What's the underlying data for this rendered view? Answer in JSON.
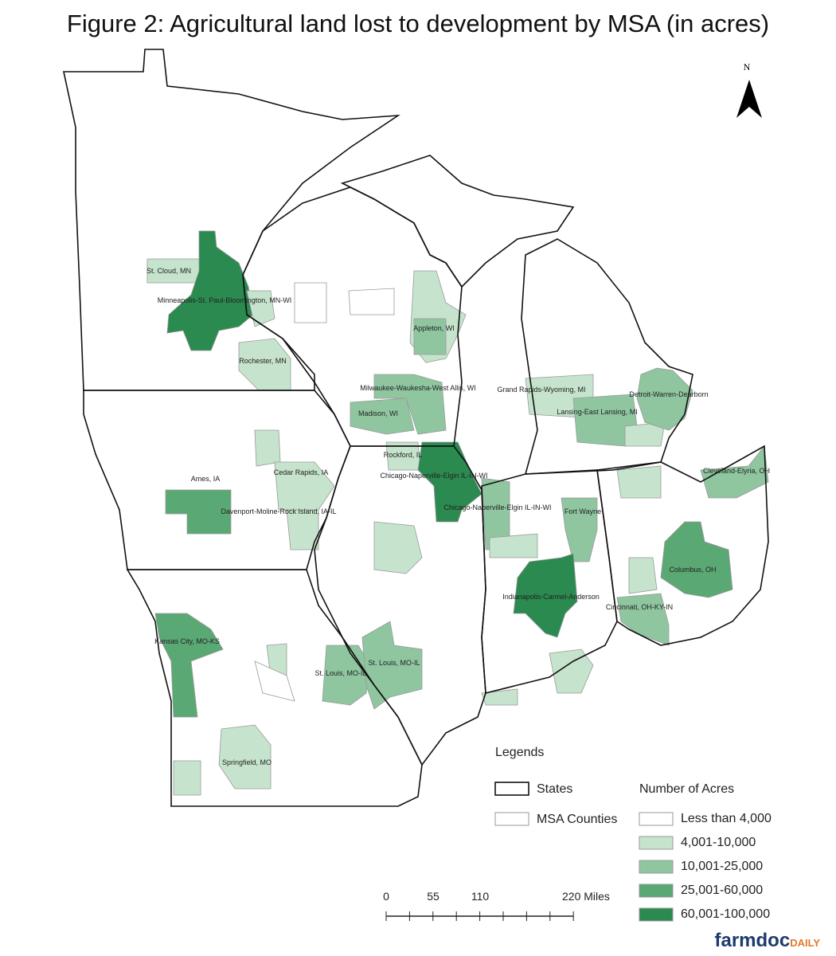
{
  "title": "Figure 2: Agricultural land lost to development by MSA (in acres)",
  "north_label": "N",
  "msa_labels": [
    "St. Cloud, MN",
    "Minneapolis-St. Paul-Bloomington, MN-WI",
    "Rochester, MN",
    "Appleton, WI",
    "Milwaukee-Waukesha-West Allis, WI",
    "Madison, WI",
    "Grand Rapids-Wyoming, MI",
    "Lansing-East Lansing, MI",
    "Detroit-Warren-Dearborn",
    "Rockford, IL",
    "Chicago-Naperville-Elgin IL-IN-WI",
    "Chicago-Naperville-Elgin IL-IN-WI",
    "Fort Wayne",
    "Cleveland-Elyria, OH",
    "Ames, IA",
    "Cedar Rapids, IA",
    "Davenport-Moline-Rock Island, IA-IL",
    "Indianapolis-Carmel-Anderson",
    "Columbus, OH",
    "Cincinnati, OH-KY-IN",
    "Kansas City, MO-KS",
    "St. Louis, MO-IL",
    "St. Louis, MO-IL",
    "Springfield, MO"
  ],
  "legend": {
    "title": "Legends",
    "states": "States",
    "msa_counties": "MSA Counties",
    "acres_title": "Number of Acres",
    "items": [
      {
        "label": "Less than 4,000",
        "color": "#ffffff"
      },
      {
        "label": "4,001-10,000",
        "color": "#c6e4cd"
      },
      {
        "label": "10,001-25,000",
        "color": "#8fc6a0"
      },
      {
        "label": "25,001-60,000",
        "color": "#5aa874"
      },
      {
        "label": "60,001-100,000",
        "color": "#2b8a4f"
      }
    ]
  },
  "scale_bar": {
    "labels": [
      "0",
      "55",
      "110",
      "220 Miles"
    ]
  },
  "logo": {
    "main": "farmdoc",
    "sub": "DAILY"
  }
}
